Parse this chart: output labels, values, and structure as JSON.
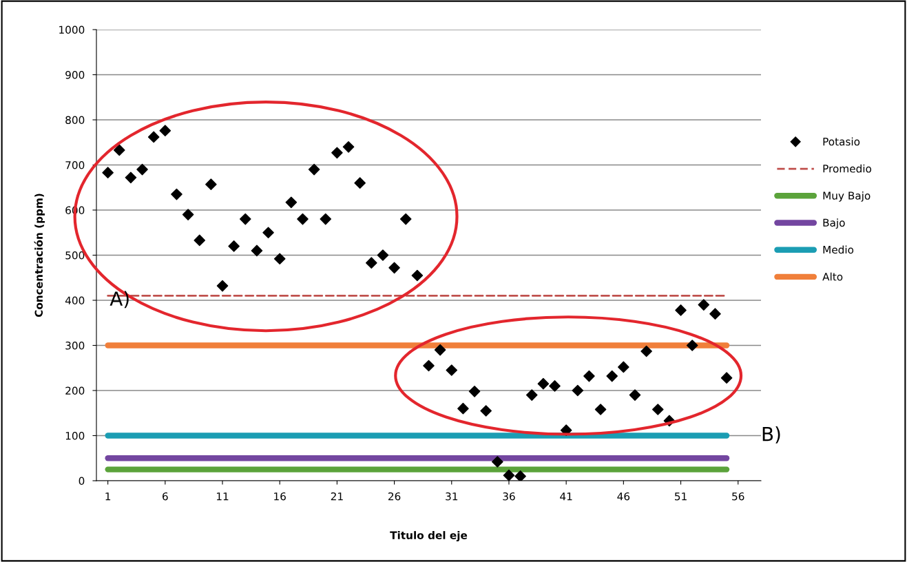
{
  "chart_data": {
    "type": "scatter",
    "xlabel": "Titulo del eje",
    "ylabel": "Concentración (ppm)",
    "xlim": [
      0,
      58
    ],
    "xticks": [
      1,
      6,
      11,
      16,
      21,
      26,
      31,
      36,
      41,
      46,
      51,
      56
    ],
    "ylim": [
      0,
      1000
    ],
    "yticks": [
      0,
      100,
      200,
      300,
      400,
      500,
      600,
      700,
      800,
      900,
      1000
    ],
    "grid": "y",
    "legend": "right",
    "marker": "diamond",
    "x": [
      1,
      2,
      3,
      4,
      5,
      6,
      7,
      8,
      9,
      10,
      11,
      12,
      13,
      14,
      15,
      16,
      17,
      18,
      19,
      20,
      21,
      22,
      23,
      24,
      25,
      26,
      27,
      28,
      29,
      30,
      31,
      32,
      33,
      34,
      35,
      36,
      37,
      38,
      39,
      40,
      41,
      42,
      43,
      44,
      45,
      46,
      47,
      48,
      49,
      50,
      51,
      52,
      53,
      54,
      55
    ],
    "series": [
      {
        "name": "Potasio",
        "color": "#000000",
        "values": [
          683,
          733,
          672,
          690,
          762,
          776,
          635,
          590,
          533,
          657,
          432,
          520,
          580,
          510,
          550,
          492,
          617,
          580,
          690,
          580,
          727,
          740,
          660,
          483,
          500,
          472,
          580,
          455,
          255,
          290,
          245,
          160,
          198,
          155,
          42,
          12,
          10,
          190,
          215,
          210,
          112,
          200,
          232,
          158,
          232,
          252,
          190,
          287,
          158,
          133,
          378,
          300,
          390,
          370,
          228
        ]
      }
    ],
    "ref_lines": [
      {
        "axis": "y",
        "value": 410,
        "label": "Promedio",
        "color": "#c0504d",
        "line_style": "dashed"
      },
      {
        "axis": "y",
        "value": 25,
        "label": "Muy Bajo",
        "color": "#5ba33b",
        "line_style": "solid"
      },
      {
        "axis": "y",
        "value": 50,
        "label": "Bajo",
        "color": "#7346a0",
        "line_style": "solid"
      },
      {
        "axis": "y",
        "value": 100,
        "label": "Medio",
        "color": "#1b9db3",
        "line_style": "solid"
      },
      {
        "axis": "y",
        "value": 300,
        "label": "Alto",
        "color": "#f07f3a",
        "line_style": "solid"
      }
    ],
    "annotations": [
      "A)",
      "B)"
    ]
  }
}
